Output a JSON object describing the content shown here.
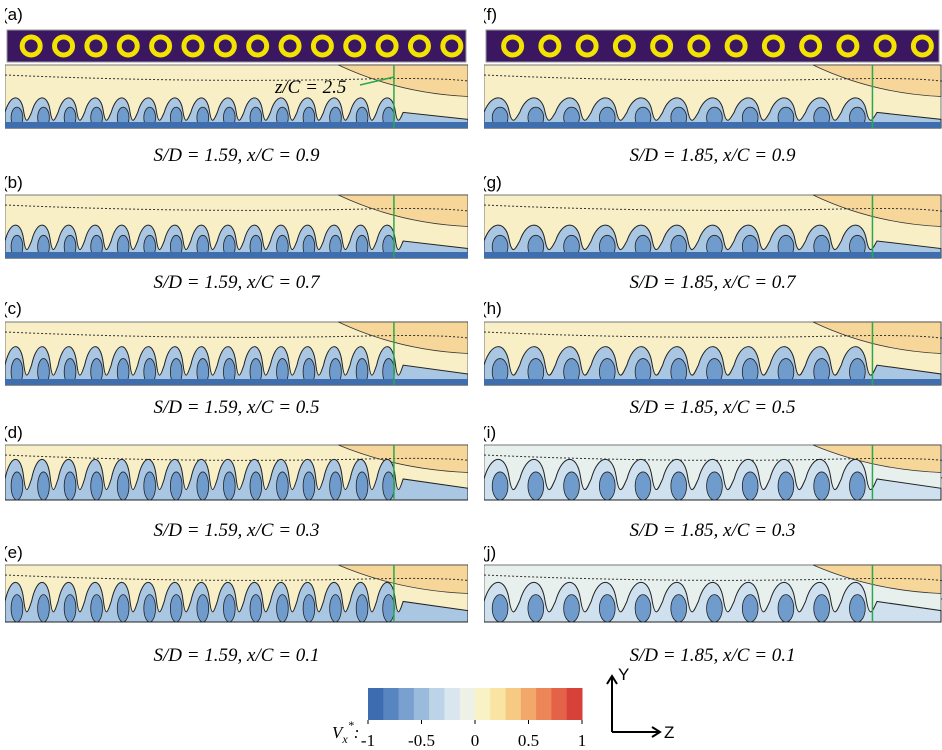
{
  "panels": [
    {
      "label": "(a)",
      "caption": "S/D = 1.59, x/C = 0.9",
      "annotation": "z/C = 2.5"
    },
    {
      "label": "(b)",
      "caption": "S/D = 1.59, x/C = 0.7"
    },
    {
      "label": "(c)",
      "caption": "S/D = 1.59, x/C = 0.5"
    },
    {
      "label": "(d)",
      "caption": "S/D = 1.59, x/C = 0.3"
    },
    {
      "label": "(e)",
      "caption": "S/D = 1.59, x/C = 0.1"
    },
    {
      "label": "(f)",
      "caption": "S/D = 1.85, x/C = 0.9"
    },
    {
      "label": "(g)",
      "caption": "S/D = 1.85, x/C = 0.7"
    },
    {
      "label": "(h)",
      "caption": "S/D = 1.85, x/C = 0.5"
    },
    {
      "label": "(i)",
      "caption": "S/D = 1.85, x/C = 0.3"
    },
    {
      "label": "(j)",
      "caption": "S/D = 1.85, x/C = 0.1"
    }
  ],
  "colorbar": {
    "symbol": "V",
    "subscript": "x",
    "superscript": "*",
    "colon": ":",
    "ticks": [
      -1,
      -0.5,
      0,
      0.5,
      1
    ]
  },
  "axes": {
    "vertical": "Y",
    "horizontal": "Z"
  }
}
